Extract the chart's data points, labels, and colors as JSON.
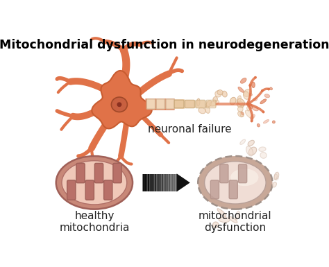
{
  "title": "Mitochondrial dysfunction in neurodegeneration",
  "title_fontsize": 12.5,
  "title_weight": "bold",
  "bg_color": "#ffffff",
  "neuron_color": "#e07248",
  "neuron_edge": "#c85c30",
  "neuron_nucleus_color": "#c86040",
  "neuron_nucleus_edge": "#a04828",
  "nucleolus_color": "#8a3020",
  "axon_myelin_color": "#f0d5b8",
  "axon_myelin_edge": "#d4b090",
  "axon_frag_color": "#e8c8a8",
  "terminal_color": "#e07248",
  "neuronal_failure_label": "neuronal failure",
  "healthy_mito_label": "healthy\nmitochondria",
  "dysfunc_mito_label": "mitochondrial\ndysfunction",
  "mito_outer_color": "#c88878",
  "mito_inner_color": "#f0c8b8",
  "mito_crista_color": "#b87068",
  "mito_crista_edge": "#a06058",
  "dysfunc_outer_color": "#c8a898",
  "dysfunc_inner_color": "#f0ddd5",
  "dysfunc_crista_color": "#c0a098",
  "dysfunc_crista_edge": "#b09088",
  "arrow_color": "#111111",
  "label_fontsize": 11,
  "label_color": "#222222"
}
